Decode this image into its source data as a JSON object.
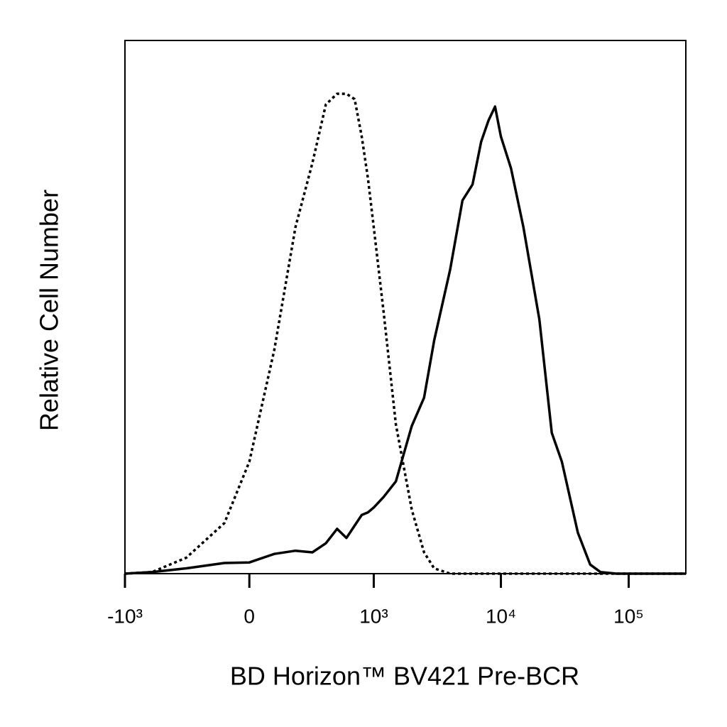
{
  "chart_data": {
    "type": "line",
    "x_label": "BD Horizon™ BV421 Pre-BCR",
    "y_label": "Relative Cell Number",
    "xscale": "biexponential",
    "xlim": [
      -1000,
      280000
    ],
    "xticks": [
      {
        "value": -1000,
        "label": "-10³"
      },
      0,
      {
        "value": 1000,
        "label": "10³"
      },
      {
        "value": 10000,
        "label": "10⁴"
      },
      {
        "value": 100000,
        "label": "10⁵"
      }
    ],
    "ylim": [
      0,
      100
    ],
    "x": [
      -1000,
      -600,
      -300,
      -100,
      0,
      100,
      200,
      300,
      400,
      500,
      600,
      700,
      800,
      900,
      1000,
      1200,
      1500,
      2000,
      2500,
      3000,
      4000,
      5000,
      6000,
      7000,
      8000,
      9000,
      10000,
      12000,
      15000,
      20000,
      25000,
      30000,
      40000,
      50000,
      60000,
      80000,
      100000,
      150000,
      200000,
      280000
    ],
    "series": [
      {
        "color": "#000000",
        "line_style": "dotted",
        "values": [
          0,
          0.3,
          3,
          9.5,
          21,
          42,
          65,
          77,
          88,
          90,
          90,
          89,
          82,
          74,
          65,
          49,
          28,
          12,
          4,
          1,
          0,
          0,
          0,
          0,
          0,
          0,
          0,
          0,
          0,
          0,
          0,
          0,
          0,
          0,
          0,
          0,
          0,
          0,
          0,
          0
        ]
      },
      {
        "color": "#000000",
        "line_style": "solid",
        "values": [
          0,
          0.3,
          1,
          2,
          2.1,
          3.7,
          4.3,
          4,
          5.7,
          8.4,
          6.7,
          9,
          11,
          11.5,
          12.4,
          14.4,
          17.3,
          27.7,
          33,
          43.7,
          57,
          70,
          73,
          81,
          85,
          87.6,
          82,
          76,
          65,
          47.7,
          26.4,
          21,
          7.7,
          1.7,
          0.3,
          0,
          0,
          0,
          0,
          0
        ]
      }
    ]
  }
}
